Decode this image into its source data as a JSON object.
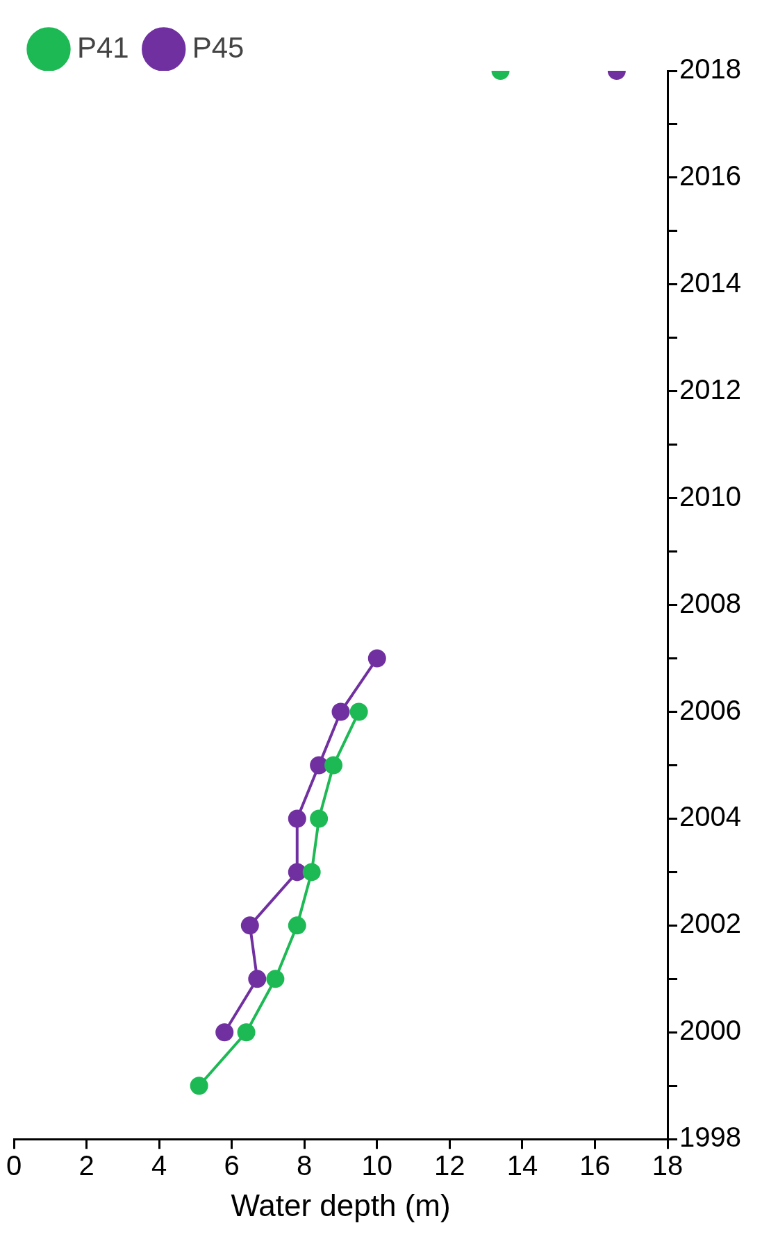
{
  "chart_data": {
    "type": "line",
    "orientation": "horizontal",
    "xlabel": "Water depth (m)",
    "xlim": [
      0,
      18
    ],
    "xticks": [
      0,
      2,
      4,
      6,
      8,
      10,
      12,
      14,
      16,
      18
    ],
    "ylim": [
      1998,
      2018
    ],
    "yticks": [
      1998,
      {
        "value": 1999,
        "label": null
      },
      2000,
      {
        "value": 2001,
        "label": null
      },
      2002,
      {
        "value": 2003,
        "label": null
      },
      2004,
      {
        "value": 2005,
        "label": null
      },
      2006,
      {
        "value": 2007,
        "label": null
      },
      2008,
      {
        "value": 2009,
        "label": null
      },
      2010,
      {
        "value": 2011,
        "label": null
      },
      2012,
      {
        "value": 2013,
        "label": null
      },
      2014,
      {
        "value": 2015,
        "label": null
      },
      2016,
      {
        "value": 2017,
        "label": null
      },
      2018
    ],
    "series": [
      {
        "name": "P41",
        "color": "#1db954",
        "x": [
          1999,
          2000,
          2001,
          2002,
          2003,
          2004,
          2005,
          2006,
          2012,
          2018
        ],
        "values": [
          5.1,
          6.4,
          7.2,
          7.8,
          8.2,
          8.4,
          8.8,
          9.5,
          null,
          13.4
        ]
      },
      {
        "name": "P45",
        "color": "#7030a0",
        "x": [
          2000,
          2001,
          2002,
          2003,
          2004,
          2005,
          2006,
          2007,
          2012,
          2018
        ],
        "values": [
          5.8,
          6.7,
          6.5,
          7.8,
          7.8,
          8.4,
          9.0,
          10.0,
          null,
          16.6
        ]
      }
    ],
    "marker": "circle",
    "line_style": "solid",
    "grid": false,
    "legend": "top left"
  }
}
